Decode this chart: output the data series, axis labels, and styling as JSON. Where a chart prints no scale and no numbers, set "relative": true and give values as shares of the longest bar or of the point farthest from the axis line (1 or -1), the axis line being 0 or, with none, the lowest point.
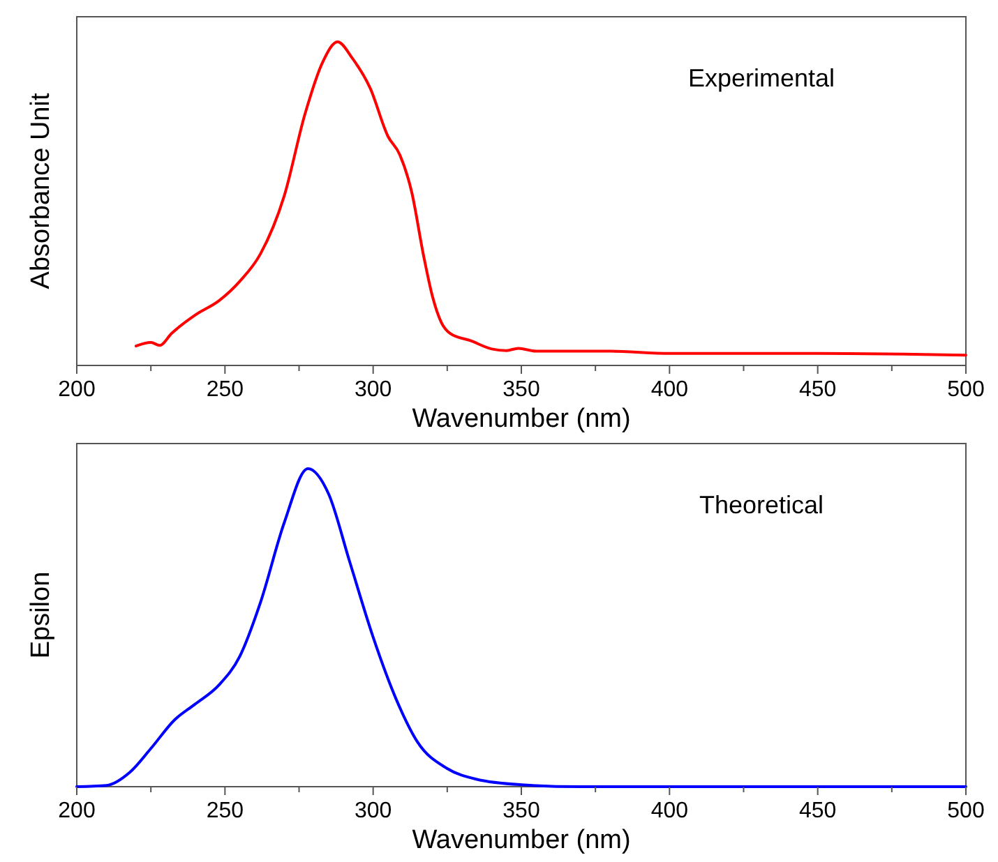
{
  "chart_data": [
    {
      "type": "line",
      "relative": true,
      "xlabel": "Wavenumber (nm)",
      "ylabel": "Absorbance Unit",
      "annotations": [
        "Experimental"
      ],
      "xlim": [
        200,
        500
      ],
      "xticks": [
        200,
        {
          "value": 225,
          "label": null
        },
        250,
        {
          "value": 275,
          "label": null
        },
        300,
        {
          "value": 325,
          "label": null
        },
        350,
        {
          "value": 375,
          "label": null
        },
        400,
        {
          "value": 425,
          "label": null
        },
        450,
        {
          "value": 475,
          "label": null
        },
        500
      ],
      "marker": "none",
      "line_style": "solid",
      "grid": false,
      "series": [
        {
          "color": "#ff0000",
          "x": [
            220,
            225,
            228,
            232,
            240,
            248,
            255,
            262,
            270,
            277,
            283,
            288,
            293,
            299,
            305,
            309,
            313,
            317,
            320,
            323,
            326,
            333,
            340,
            345,
            349,
            355,
            380,
            400,
            450,
            500
          ],
          "values": [
            0.06,
            0.071,
            0.062,
            0.099,
            0.156,
            0.2,
            0.26,
            0.345,
            0.524,
            0.777,
            0.938,
            1.0,
            0.949,
            0.857,
            0.708,
            0.651,
            0.536,
            0.34,
            0.214,
            0.133,
            0.099,
            0.076,
            0.051,
            0.046,
            0.053,
            0.044,
            0.044,
            0.037,
            0.037,
            0.032
          ]
        }
      ]
    },
    {
      "type": "line",
      "relative": true,
      "xlabel": "Wavenumber (nm)",
      "ylabel": "Epsilon",
      "annotations": [
        "Theoretical"
      ],
      "xlim": [
        200,
        500
      ],
      "xticks": [
        200,
        {
          "value": 225,
          "label": null
        },
        250,
        {
          "value": 275,
          "label": null
        },
        300,
        {
          "value": 325,
          "label": null
        },
        350,
        {
          "value": 375,
          "label": null
        },
        400,
        {
          "value": 425,
          "label": null
        },
        450,
        {
          "value": 475,
          "label": null
        },
        500
      ],
      "marker": "none",
      "line_style": "solid",
      "grid": false,
      "series": [
        {
          "color": "#0000ff",
          "x": [
            200,
            210,
            218,
            225,
            233,
            240,
            248,
            255,
            262,
            270,
            278,
            285,
            292,
            300,
            308,
            315,
            325,
            335,
            350,
            370,
            500
          ],
          "values": [
            0,
            0.004,
            0.046,
            0.12,
            0.21,
            0.26,
            0.32,
            0.41,
            0.58,
            0.83,
            1.0,
            0.92,
            0.71,
            0.47,
            0.27,
            0.14,
            0.057,
            0.023,
            0.006,
            0,
            0
          ]
        }
      ]
    }
  ]
}
